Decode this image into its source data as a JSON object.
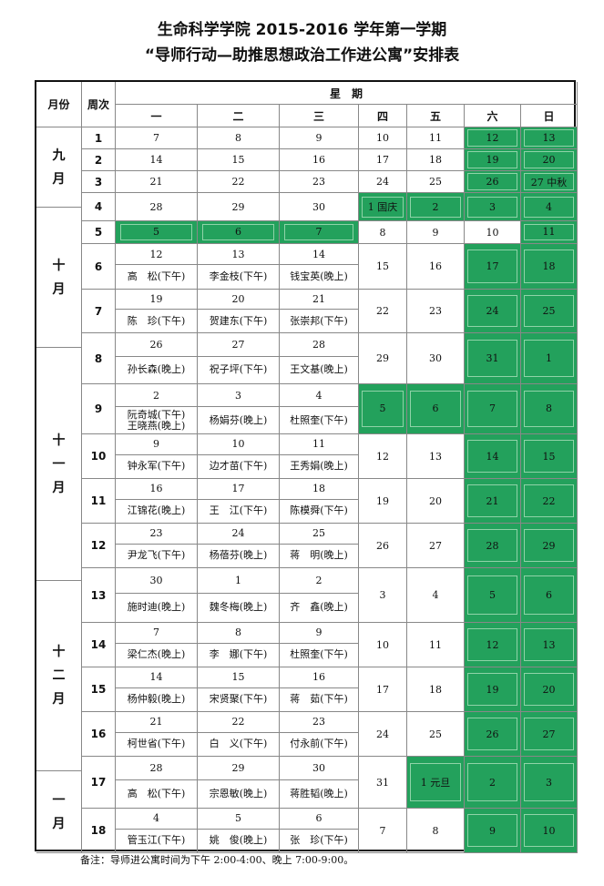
{
  "title_line1": "生命科学学院 2015-2016 学年第一学期",
  "title_line2": "“导师行动—助推思想政治工作进公寓”安排表",
  "headers": {
    "month": "月份",
    "week": "周次",
    "weekday": "星　期",
    "days": [
      "一",
      "二",
      "三",
      "四",
      "五",
      "六",
      "日"
    ]
  },
  "months": [
    {
      "label": "九月"
    },
    {
      "label": "十月"
    },
    {
      "label": "十一月"
    },
    {
      "label": "十二月"
    },
    {
      "label": "一月"
    }
  ],
  "highlight_color": "#23a15c",
  "weeks": [
    {
      "no": "1",
      "days": [
        {
          "date": "7"
        },
        {
          "date": "8"
        },
        {
          "date": "9"
        },
        {
          "date": "10"
        },
        {
          "date": "11"
        },
        {
          "date": "12",
          "green": true
        },
        {
          "date": "13",
          "green": true
        }
      ]
    },
    {
      "no": "2",
      "days": [
        {
          "date": "14"
        },
        {
          "date": "15"
        },
        {
          "date": "16"
        },
        {
          "date": "17"
        },
        {
          "date": "18"
        },
        {
          "date": "19",
          "green": true
        },
        {
          "date": "20",
          "green": true
        }
      ]
    },
    {
      "no": "3",
      "days": [
        {
          "date": "21"
        },
        {
          "date": "22"
        },
        {
          "date": "23"
        },
        {
          "date": "24"
        },
        {
          "date": "25"
        },
        {
          "date": "26",
          "green": true
        },
        {
          "date": "27 中秋",
          "green": true
        }
      ]
    },
    {
      "no": "4",
      "days": [
        {
          "date": "28"
        },
        {
          "date": "29"
        },
        {
          "date": "30"
        },
        {
          "date": "1 国庆",
          "green": true
        },
        {
          "date": "2",
          "green": true
        },
        {
          "date": "3",
          "green": true
        },
        {
          "date": "4",
          "green": true
        }
      ]
    },
    {
      "no": "5",
      "days": [
        {
          "date": "5",
          "green": true
        },
        {
          "date": "6",
          "green": true
        },
        {
          "date": "7",
          "green": true
        },
        {
          "date": "8"
        },
        {
          "date": "9"
        },
        {
          "date": "10"
        },
        {
          "date": "11",
          "green": true
        }
      ]
    },
    {
      "no": "6",
      "days": [
        {
          "date": "12",
          "names": [
            "高　松(下午)"
          ]
        },
        {
          "date": "13",
          "names": [
            "李金枝(下午)"
          ]
        },
        {
          "date": "14",
          "names": [
            "钱宝英(晚上)"
          ]
        },
        {
          "date": "15"
        },
        {
          "date": "16"
        },
        {
          "date": "17",
          "green": true
        },
        {
          "date": "18",
          "green": true
        }
      ]
    },
    {
      "no": "7",
      "days": [
        {
          "date": "19",
          "names": [
            "陈　珍(下午)"
          ]
        },
        {
          "date": "20",
          "names": [
            "贺建东(下午)"
          ]
        },
        {
          "date": "21",
          "names": [
            "张崇邦(下午)"
          ]
        },
        {
          "date": "22"
        },
        {
          "date": "23"
        },
        {
          "date": "24",
          "green": true
        },
        {
          "date": "25",
          "green": true
        }
      ]
    },
    {
      "no": "8",
      "days": [
        {
          "date": "26",
          "names": [
            "孙长森(晚上)"
          ]
        },
        {
          "date": "27",
          "names": [
            "祝子坪(下午)"
          ]
        },
        {
          "date": "28",
          "names": [
            "王文基(晚上)"
          ]
        },
        {
          "date": "29"
        },
        {
          "date": "30"
        },
        {
          "date": "31",
          "green": true
        },
        {
          "date": "1",
          "green": true
        }
      ]
    },
    {
      "no": "9",
      "days": [
        {
          "date": "2",
          "names": [
            "阮奇城(下午)",
            "王晓燕(晚上)"
          ]
        },
        {
          "date": "3",
          "names": [
            "杨娟芬(晚上)"
          ]
        },
        {
          "date": "4",
          "names": [
            "杜照奎(下午)"
          ]
        },
        {
          "date": "5",
          "green": true
        },
        {
          "date": "6",
          "green": true
        },
        {
          "date": "7",
          "green": true
        },
        {
          "date": "8",
          "green": true
        }
      ]
    },
    {
      "no": "10",
      "days": [
        {
          "date": "9",
          "names": [
            "钟永军(下午)"
          ]
        },
        {
          "date": "10",
          "names": [
            "边才苗(下午)"
          ]
        },
        {
          "date": "11",
          "names": [
            "王秀娟(晚上)"
          ]
        },
        {
          "date": "12"
        },
        {
          "date": "13"
        },
        {
          "date": "14",
          "green": true
        },
        {
          "date": "15",
          "green": true
        }
      ]
    },
    {
      "no": "11",
      "days": [
        {
          "date": "16",
          "names": [
            "江锦花(晚上)"
          ]
        },
        {
          "date": "17",
          "names": [
            "王　江(下午)"
          ]
        },
        {
          "date": "18",
          "names": [
            "陈模舜(下午)"
          ]
        },
        {
          "date": "19"
        },
        {
          "date": "20"
        },
        {
          "date": "21",
          "green": true
        },
        {
          "date": "22",
          "green": true
        }
      ]
    },
    {
      "no": "12",
      "days": [
        {
          "date": "23",
          "names": [
            "尹龙飞(下午)"
          ]
        },
        {
          "date": "24",
          "names": [
            "杨蓓芬(晚上)"
          ]
        },
        {
          "date": "25",
          "names": [
            "蒋　明(晚上)"
          ]
        },
        {
          "date": "26"
        },
        {
          "date": "27"
        },
        {
          "date": "28",
          "green": true
        },
        {
          "date": "29",
          "green": true
        }
      ]
    },
    {
      "no": "13",
      "days": [
        {
          "date": "30",
          "names": [
            "施时迪(晚上)"
          ]
        },
        {
          "date": "1",
          "names": [
            "魏冬梅(晚上)"
          ]
        },
        {
          "date": "2",
          "names": [
            "齐　鑫(晚上)"
          ]
        },
        {
          "date": "3"
        },
        {
          "date": "4"
        },
        {
          "date": "5",
          "green": true
        },
        {
          "date": "6",
          "green": true
        }
      ]
    },
    {
      "no": "14",
      "days": [
        {
          "date": "7",
          "names": [
            "梁仁杰(晚上)"
          ]
        },
        {
          "date": "8",
          "names": [
            "李　娜(下午)"
          ]
        },
        {
          "date": "9",
          "names": [
            "杜照奎(下午)"
          ]
        },
        {
          "date": "10"
        },
        {
          "date": "11"
        },
        {
          "date": "12",
          "green": true
        },
        {
          "date": "13",
          "green": true
        }
      ]
    },
    {
      "no": "15",
      "days": [
        {
          "date": "14",
          "names": [
            "杨仲毅(晚上)"
          ]
        },
        {
          "date": "15",
          "names": [
            "宋贤聚(下午)"
          ]
        },
        {
          "date": "16",
          "names": [
            "蒋　茹(下午)"
          ]
        },
        {
          "date": "17"
        },
        {
          "date": "18"
        },
        {
          "date": "19",
          "green": true
        },
        {
          "date": "20",
          "green": true
        }
      ]
    },
    {
      "no": "16",
      "days": [
        {
          "date": "21",
          "names": [
            "柯世省(下午)"
          ]
        },
        {
          "date": "22",
          "names": [
            "白　义(下午)"
          ]
        },
        {
          "date": "23",
          "names": [
            "付永前(下午)"
          ]
        },
        {
          "date": "24"
        },
        {
          "date": "25"
        },
        {
          "date": "26",
          "green": true
        },
        {
          "date": "27",
          "green": true
        }
      ]
    },
    {
      "no": "17",
      "days": [
        {
          "date": "28",
          "names": [
            "高　松(下午)"
          ]
        },
        {
          "date": "29",
          "names": [
            "宗恩敏(晚上)"
          ]
        },
        {
          "date": "30",
          "names": [
            "蒋胜韬(晚上)"
          ]
        },
        {
          "date": "31"
        },
        {
          "date": "1 元旦",
          "green": true
        },
        {
          "date": "2",
          "green": true
        },
        {
          "date": "3",
          "green": true
        }
      ]
    },
    {
      "no": "18",
      "days": [
        {
          "date": "4",
          "names": [
            "管玉江(下午)"
          ]
        },
        {
          "date": "5",
          "names": [
            "姚　俊(晚上)"
          ]
        },
        {
          "date": "6",
          "names": [
            "张　珍(下午)"
          ]
        },
        {
          "date": "7"
        },
        {
          "date": "8"
        },
        {
          "date": "9",
          "green": true
        },
        {
          "date": "10",
          "green": true
        }
      ]
    }
  ],
  "note": "备注：导师进公寓时间为下午 2:00-4:00、晚上 7:00-9:00。"
}
